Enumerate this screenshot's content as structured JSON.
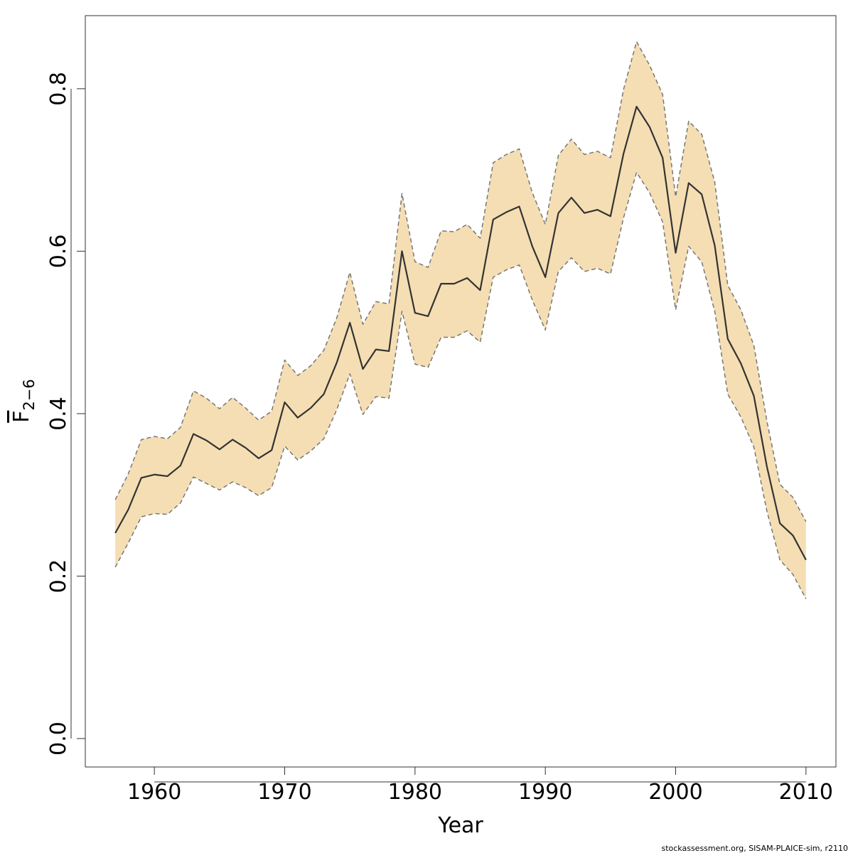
{
  "chart_data": {
    "type": "line",
    "xlabel": "Year",
    "ylabel_main": "F",
    "ylabel_subscript": "2−6",
    "xlim": [
      1954.7,
      2012.3
    ],
    "ylim": [
      -0.035,
      0.89
    ],
    "xticks": [
      1960,
      1970,
      1980,
      1990,
      2000,
      2010
    ],
    "yticks": [
      0.0,
      0.2,
      0.4,
      0.6,
      0.8
    ],
    "ytick_labels": [
      "0.0",
      "0.2",
      "0.4",
      "0.6",
      "0.8"
    ],
    "grid": false,
    "x": [
      1957,
      1958,
      1959,
      1960,
      1961,
      1962,
      1963,
      1964,
      1965,
      1966,
      1967,
      1968,
      1969,
      1970,
      1971,
      1972,
      1973,
      1974,
      1975,
      1976,
      1977,
      1978,
      1979,
      1980,
      1981,
      1982,
      1983,
      1984,
      1985,
      1986,
      1987,
      1988,
      1989,
      1990,
      1991,
      1992,
      1993,
      1994,
      1995,
      1996,
      1997,
      1998,
      1999,
      2000,
      2001,
      2002,
      2003,
      2004,
      2005,
      2006,
      2007,
      2008,
      2009,
      2010
    ],
    "series": [
      {
        "role": "estimate",
        "values": [
          0.253,
          0.282,
          0.321,
          0.325,
          0.323,
          0.336,
          0.375,
          0.367,
          0.356,
          0.368,
          0.358,
          0.345,
          0.355,
          0.414,
          0.395,
          0.407,
          0.424,
          0.463,
          0.512,
          0.455,
          0.479,
          0.477,
          0.6,
          0.524,
          0.52,
          0.56,
          0.56,
          0.567,
          0.552,
          0.639,
          0.648,
          0.655,
          0.606,
          0.568,
          0.647,
          0.666,
          0.647,
          0.651,
          0.643,
          0.72,
          0.778,
          0.753,
          0.715,
          0.598,
          0.684,
          0.67,
          0.607,
          0.492,
          0.462,
          0.422,
          0.335,
          0.265,
          0.25,
          0.22
        ],
        "color": "#333333"
      },
      {
        "role": "upper",
        "values": [
          0.294,
          0.326,
          0.368,
          0.372,
          0.369,
          0.383,
          0.428,
          0.419,
          0.406,
          0.42,
          0.407,
          0.392,
          0.403,
          0.466,
          0.447,
          0.459,
          0.478,
          0.518,
          0.574,
          0.51,
          0.538,
          0.535,
          0.671,
          0.587,
          0.58,
          0.625,
          0.624,
          0.633,
          0.616,
          0.709,
          0.719,
          0.726,
          0.672,
          0.633,
          0.718,
          0.738,
          0.719,
          0.723,
          0.715,
          0.799,
          0.858,
          0.829,
          0.793,
          0.667,
          0.76,
          0.744,
          0.685,
          0.558,
          0.528,
          0.484,
          0.391,
          0.313,
          0.297,
          0.267
        ],
        "color": "#777777"
      },
      {
        "role": "lower",
        "values": [
          0.211,
          0.241,
          0.273,
          0.277,
          0.276,
          0.29,
          0.322,
          0.314,
          0.306,
          0.316,
          0.309,
          0.299,
          0.309,
          0.36,
          0.343,
          0.354,
          0.369,
          0.405,
          0.449,
          0.399,
          0.421,
          0.419,
          0.526,
          0.461,
          0.457,
          0.494,
          0.494,
          0.502,
          0.488,
          0.568,
          0.577,
          0.583,
          0.54,
          0.503,
          0.575,
          0.592,
          0.575,
          0.579,
          0.572,
          0.641,
          0.697,
          0.672,
          0.636,
          0.528,
          0.606,
          0.587,
          0.526,
          0.424,
          0.396,
          0.359,
          0.28,
          0.22,
          0.202,
          0.172
        ],
        "color": "#777777"
      }
    ],
    "band_fill": "#f5deb3"
  },
  "footer": {
    "text": "stockassessment.org, SISAM-PLAICE-sim, r2110"
  }
}
